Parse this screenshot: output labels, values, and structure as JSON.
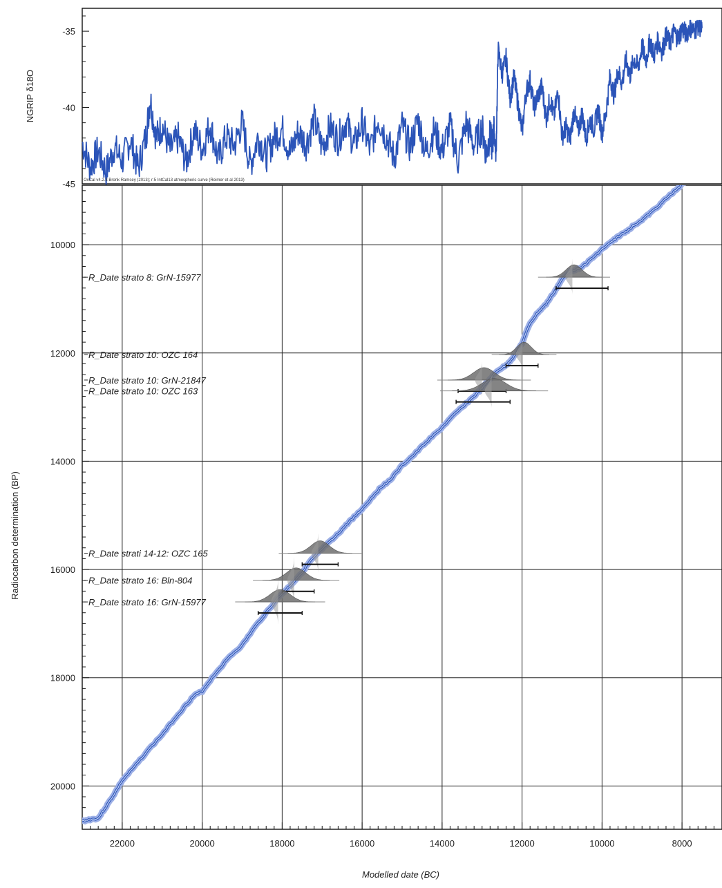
{
  "chart_data": [
    {
      "type": "line",
      "ylabel": "NGRIP δ18O",
      "ylim": [
        -45,
        -33.5
      ],
      "xlim": [
        23000,
        7000
      ],
      "x_reversed": true,
      "yticks": [
        -35,
        -40,
        -45
      ],
      "credit": "OxCal v4.2.3 Bronk Ramsey (2013); r:5 IntCal13 atmospheric curve (Reimer et al 2013)",
      "series_color": "#2b54b8",
      "series": [
        {
          "x": [
            23000,
            22800,
            22600,
            22400,
            22200,
            22000,
            21800,
            21600,
            21400,
            21300,
            21150,
            21000,
            20800,
            20600,
            20400,
            20200,
            20000,
            19800,
            19600,
            19400,
            19200,
            19000,
            18800,
            18600,
            18400,
            18200,
            18000,
            17800,
            17600,
            17400,
            17200,
            17000,
            16800,
            16600,
            16400,
            16200,
            16000,
            15800,
            15600,
            15400,
            15200,
            15000,
            14800,
            14600,
            14400,
            14200,
            14000,
            13800,
            13600,
            13400,
            13200,
            13000,
            12900,
            12800,
            12750,
            12700,
            12650,
            12600,
            12500,
            12400,
            12300,
            12200,
            12100,
            12000,
            11900,
            11800,
            11700,
            11600,
            11500,
            11400,
            11300,
            11200,
            11100,
            11000,
            10900,
            10800,
            10700,
            10600,
            10500,
            10400,
            10300,
            10200,
            10100,
            10000,
            9900,
            9800,
            9700,
            9600,
            9500,
            9400,
            9300,
            9200,
            9100,
            9000,
            8900,
            8800,
            8700,
            8600,
            8500,
            8400,
            8300,
            8200,
            8100,
            8000,
            7900,
            7800,
            7700,
            7600,
            7500
          ],
          "y": [
            -42.3,
            -43.9,
            -42.8,
            -44.2,
            -42.6,
            -43.5,
            -42.1,
            -44.0,
            -41.8,
            -39.4,
            -42.0,
            -41.2,
            -42.8,
            -42.0,
            -43.6,
            -41.5,
            -42.7,
            -41.1,
            -43.4,
            -41.9,
            -42.5,
            -41.0,
            -43.8,
            -41.9,
            -43.2,
            -42.0,
            -41.4,
            -43.0,
            -41.6,
            -42.4,
            -40.8,
            -42.6,
            -41.3,
            -42.1,
            -40.9,
            -42.5,
            -41.0,
            -42.8,
            -40.7,
            -41.9,
            -43.3,
            -41.2,
            -42.6,
            -40.8,
            -43.0,
            -41.5,
            -42.8,
            -41.2,
            -43.5,
            -41.0,
            -42.5,
            -41.3,
            -43.0,
            -41.8,
            -42.5,
            -41.4,
            -43.2,
            -36.2,
            -37.8,
            -36.8,
            -39.4,
            -38.0,
            -39.8,
            -41.6,
            -39.0,
            -38.2,
            -40.0,
            -39.2,
            -38.6,
            -40.8,
            -39.4,
            -40.6,
            -38.9,
            -41.9,
            -41.3,
            -42.1,
            -40.2,
            -41.6,
            -40.4,
            -42.0,
            -40.8,
            -41.4,
            -40.1,
            -41.7,
            -40.3,
            -38.0,
            -39.2,
            -37.6,
            -38.4,
            -36.9,
            -37.9,
            -36.8,
            -37.4,
            -36.0,
            -36.9,
            -35.6,
            -36.6,
            -35.6,
            -36.3,
            -35.3,
            -35.8,
            -35.0,
            -35.5,
            -34.8,
            -35.2,
            -34.7,
            -35.0,
            -34.6,
            -34.8
          ]
        }
      ]
    },
    {
      "type": "line",
      "xlabel": "Modelled date (BC)",
      "ylabel": "Radiocarbon determination (BP)",
      "xlim": [
        23000,
        7000
      ],
      "x_reversed": true,
      "xticks": [
        22000,
        20000,
        18000,
        16000,
        14000,
        12000,
        10000,
        8000
      ],
      "ylim": [
        20800,
        8900
      ],
      "y_reversed": true,
      "yticks": [
        10000,
        12000,
        14000,
        16000,
        18000,
        20000
      ],
      "grid": true,
      "curve_name": "IntCal13",
      "curve_color": "#2b54b8",
      "curve": {
        "x": [
          23000,
          22800,
          22600,
          22400,
          22200,
          22000,
          21700,
          21400,
          21000,
          20700,
          20400,
          20200,
          20000,
          19700,
          19300,
          19000,
          18700,
          18400,
          18100,
          17800,
          17500,
          17300,
          17100,
          16900,
          16700,
          16500,
          16300,
          16100,
          15900,
          15700,
          15500,
          15300,
          15000,
          14700,
          14400,
          14100,
          13800,
          13500,
          13200,
          13000,
          12800,
          12600,
          12400,
          12200,
          12000,
          11800,
          11600,
          11400,
          11200,
          11000,
          10800,
          10600,
          10400,
          10200,
          10000,
          9800,
          9600,
          9400,
          9200,
          9000,
          8800,
          8600,
          8400,
          8200,
          8000,
          7800,
          7600,
          7500
        ],
        "y": [
          20650,
          20620,
          20600,
          20380,
          20150,
          19900,
          19650,
          19380,
          19050,
          18770,
          18500,
          18330,
          18250,
          17950,
          17600,
          17400,
          17080,
          16800,
          16520,
          16300,
          16050,
          15850,
          15700,
          15550,
          15420,
          15260,
          15100,
          14960,
          14800,
          14620,
          14460,
          14350,
          14080,
          13880,
          13650,
          13450,
          13220,
          13000,
          12800,
          12650,
          12480,
          12320,
          12230,
          12060,
          11820,
          11450,
          11250,
          11100,
          10880,
          10640,
          10480,
          10450,
          10350,
          10220,
          10080,
          9970,
          9850,
          9760,
          9640,
          9540,
          9420,
          9290,
          9150,
          9020,
          8880,
          8780,
          8680,
          8300
        ]
      },
      "samples": [
        {
          "label": "R_Date strato 8: GrN-15977",
          "bp": 10600,
          "bp_sd": 110,
          "bc": 10700,
          "bc_sd": 200,
          "range": [
            11150,
            9850
          ]
        },
        {
          "label": "R_Date strato 10: OZC 164",
          "bp": 12030,
          "bp_sd": 100,
          "bc": 11950,
          "bc_sd": 180,
          "range": [
            12400,
            11600
          ]
        },
        {
          "label": "R_Date strato 10: GrN-21847",
          "bp": 12500,
          "bp_sd": 110,
          "bc": 12950,
          "bc_sd": 260,
          "range": [
            13600,
            12400
          ]
        },
        {
          "label": "R_Date strato 10: OZC 163",
          "bp": 12700,
          "bp_sd": 110,
          "bc": 12700,
          "bc_sd": 300,
          "range": [
            13650,
            12300
          ]
        },
        {
          "label": "R_Date strati 14-12: OZC 165",
          "bp": 15700,
          "bp_sd": 120,
          "bc": 17050,
          "bc_sd": 230,
          "range": [
            17500,
            16600
          ]
        },
        {
          "label": "R_Date strato 16: Bln-804",
          "bp": 16200,
          "bp_sd": 140,
          "bc": 17650,
          "bc_sd": 240,
          "range": [
            18000,
            17200
          ]
        },
        {
          "label": "R_Date strato 16: GrN-15977",
          "bp": 16600,
          "bp_sd": 140,
          "bc": 18050,
          "bc_sd": 250,
          "range": [
            18600,
            17500
          ]
        }
      ]
    }
  ]
}
